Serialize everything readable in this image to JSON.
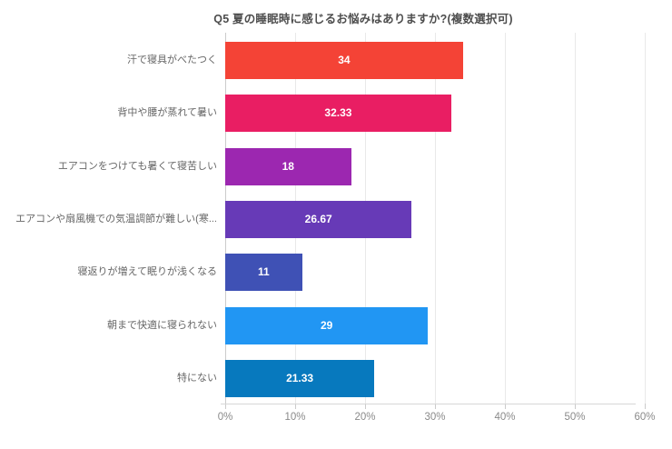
{
  "chart_data": {
    "type": "bar",
    "orientation": "horizontal",
    "title": "Q5 夏の睡眠時に感じるお悩みはありますか?(複数選択可)",
    "categories": [
      "汗で寝具がべたつく",
      "背中や腰が蒸れて暑い",
      "エアコンをつけても暑くて寝苦しい",
      "エアコンや扇風機での気温調節が難しい(寒...",
      "寝返りが増えて眠りが浅くなる",
      "朝まで快適に寝られない",
      "特にない"
    ],
    "values": [
      34,
      32.33,
      18,
      26.67,
      11,
      29,
      21.33
    ],
    "value_labels": [
      "34",
      "32.33",
      "18",
      "26.67",
      "11",
      "29",
      "21.33"
    ],
    "bar_colors": [
      "#F44336",
      "#E91E63",
      "#9C27B0",
      "#673AB7",
      "#3F51B5",
      "#2196F3",
      "#0779BE"
    ],
    "x_tick_labels": [
      "0%",
      "10%",
      "20%",
      "30%",
      "40%",
      "50%",
      "60%"
    ],
    "xlim": [
      0,
      60
    ],
    "grid": true
  },
  "style_colors": {
    "background": "#ffffff",
    "title_text": "#4d4d4d",
    "category_text": "#666666",
    "tick_text": "#8a8a8a",
    "bar_value_text": "#ffffff",
    "gridline": "#e9e9e9",
    "axis_line": "#d6d6d6",
    "y_axis_line": "#cbcbcb"
  }
}
